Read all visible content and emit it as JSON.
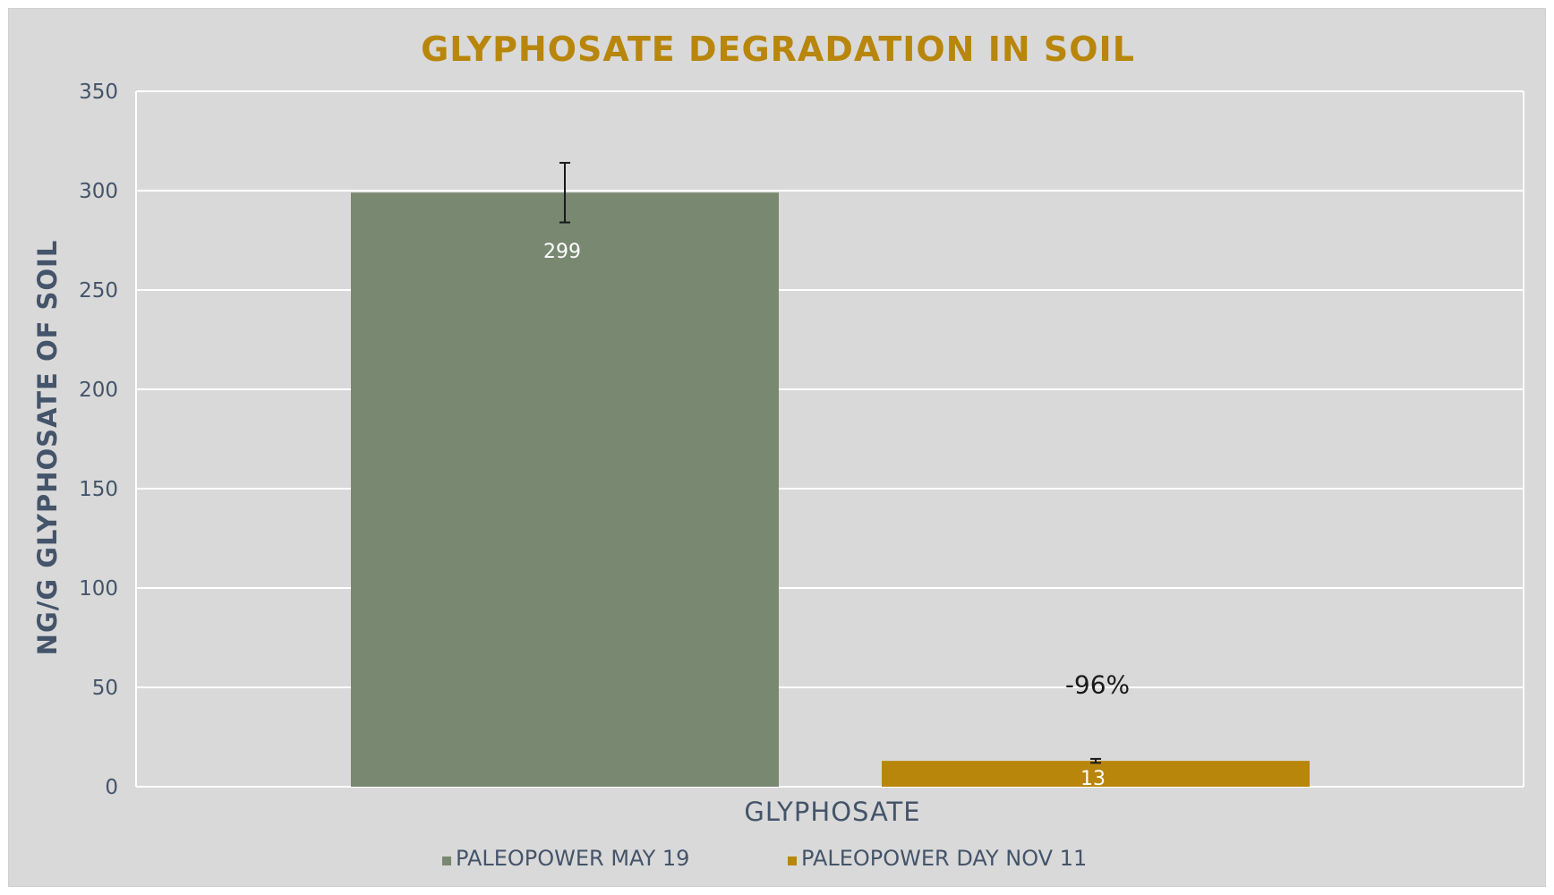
{
  "chart_data": {
    "type": "bar",
    "title": "GLYPHOSATE  DEGRADATION IN SOIL",
    "xlabel": "GLYPHOSATE",
    "ylabel": "NG/G GLYPHOSATE OF SOIL",
    "categories": [
      "GLYPHOSATE"
    ],
    "ylim": [
      0,
      350
    ],
    "yticks": [
      0,
      50,
      100,
      150,
      200,
      250,
      300,
      350
    ],
    "grid": true,
    "legend_position": "bottom",
    "series": [
      {
        "name": "PALEOPOWER MAY 19",
        "values": [
          299
        ],
        "error": [
          15
        ],
        "data_label": "299",
        "color": "#788871"
      },
      {
        "name": "PALEOPOWER DAY NOV 11",
        "values": [
          13
        ],
        "error": [
          1
        ],
        "data_label": "13",
        "color": "#b8860b"
      }
    ],
    "annotations": [
      {
        "text": "-96%",
        "series": 1
      }
    ]
  }
}
